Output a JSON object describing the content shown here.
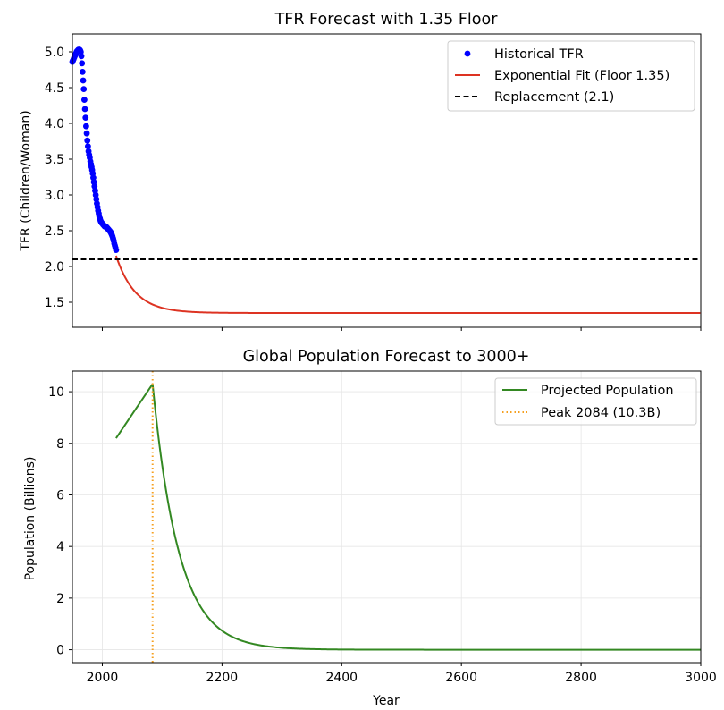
{
  "chart_data": [
    {
      "type": "line",
      "title": "TFR Forecast with 1.35 Floor",
      "xlabel": "",
      "ylabel": "TFR (Children/Woman)",
      "xlim": [
        1950,
        3000
      ],
      "ylim": [
        1.15,
        5.25
      ],
      "grid": false,
      "legend_position": "top-right",
      "yticks": [
        1.5,
        2.0,
        2.5,
        3.0,
        3.5,
        4.0,
        4.5,
        5.0
      ],
      "ytick_labels": [
        "1.5",
        "2.0",
        "2.5",
        "3.0",
        "3.5",
        "4.0",
        "4.5",
        "5.0"
      ],
      "xticks": [
        2000,
        2200,
        2400,
        2600,
        2800,
        3000
      ],
      "series": [
        {
          "name": "Historical TFR",
          "kind": "scatter",
          "color": "#0000ff",
          "x": [
            1950,
            1951,
            1952,
            1953,
            1954,
            1955,
            1956,
            1957,
            1958,
            1959,
            1960,
            1961,
            1962,
            1963,
            1964,
            1965,
            1966,
            1967,
            1968,
            1969,
            1970,
            1971,
            1972,
            1973,
            1974,
            1975,
            1976,
            1977,
            1978,
            1979,
            1980,
            1981,
            1982,
            1983,
            1984,
            1985,
            1986,
            1987,
            1988,
            1989,
            1990,
            1991,
            1992,
            1993,
            1994,
            1995,
            1996,
            1997,
            1998,
            1999,
            2000,
            2001,
            2002,
            2003,
            2004,
            2005,
            2006,
            2007,
            2008,
            2009,
            2010,
            2011,
            2012,
            2013,
            2014,
            2015,
            2016,
            2017,
            2018,
            2019,
            2020,
            2021,
            2022,
            2023
          ],
          "y": [
            4.86,
            4.88,
            4.9,
            4.92,
            4.94,
            4.96,
            4.98,
            5.0,
            5.01,
            5.02,
            5.03,
            5.03,
            5.03,
            5.02,
            5.0,
            4.94,
            4.84,
            4.72,
            4.6,
            4.48,
            4.33,
            4.2,
            4.08,
            3.96,
            3.86,
            3.76,
            3.68,
            3.61,
            3.56,
            3.52,
            3.47,
            3.43,
            3.39,
            3.35,
            3.3,
            3.24,
            3.18,
            3.12,
            3.06,
            3.0,
            2.94,
            2.88,
            2.83,
            2.78,
            2.74,
            2.7,
            2.67,
            2.64,
            2.62,
            2.61,
            2.6,
            2.59,
            2.58,
            2.57,
            2.56,
            2.56,
            2.55,
            2.55,
            2.54,
            2.53,
            2.52,
            2.51,
            2.5,
            2.49,
            2.48,
            2.46,
            2.44,
            2.42,
            2.39,
            2.36,
            2.32,
            2.29,
            2.26,
            2.23
          ]
        },
        {
          "name": "Exponential Fit (Floor 1.35)",
          "kind": "line",
          "color": "#dd3322",
          "model": {
            "type": "exp_decay_to_floor",
            "x0": 2023,
            "y0": 2.15,
            "floor": 1.35,
            "tau": 32,
            "x_end": 3000
          }
        },
        {
          "name": "Replacement (2.1)",
          "kind": "hline",
          "color": "#000000",
          "y": 2.1
        }
      ]
    },
    {
      "type": "line",
      "title": "Global Population Forecast to 3000+",
      "xlabel": "Year",
      "ylabel": "Population (Billions)",
      "xlim": [
        1950,
        3000
      ],
      "ylim": [
        -0.5,
        10.8
      ],
      "grid": true,
      "legend_position": "top-right",
      "yticks": [
        0,
        2,
        4,
        6,
        8,
        10
      ],
      "ytick_labels": [
        "0",
        "2",
        "4",
        "6",
        "8",
        "10"
      ],
      "xticks": [
        2000,
        2200,
        2400,
        2600,
        2800,
        3000
      ],
      "xtick_labels": [
        "2000",
        "2200",
        "2400",
        "2600",
        "2800",
        "3000"
      ],
      "series": [
        {
          "name": "Projected Population",
          "kind": "line",
          "color": "#338822",
          "model": {
            "type": "rise_then_decay",
            "x0": 2023,
            "y0": 8.2,
            "peak_x": 2084,
            "peak_y": 10.3,
            "tau": 44,
            "x_end": 3000
          }
        },
        {
          "name": "Peak 2084 (10.3B)",
          "kind": "vline",
          "color": "#f5a020",
          "x": 2084
        }
      ]
    }
  ]
}
